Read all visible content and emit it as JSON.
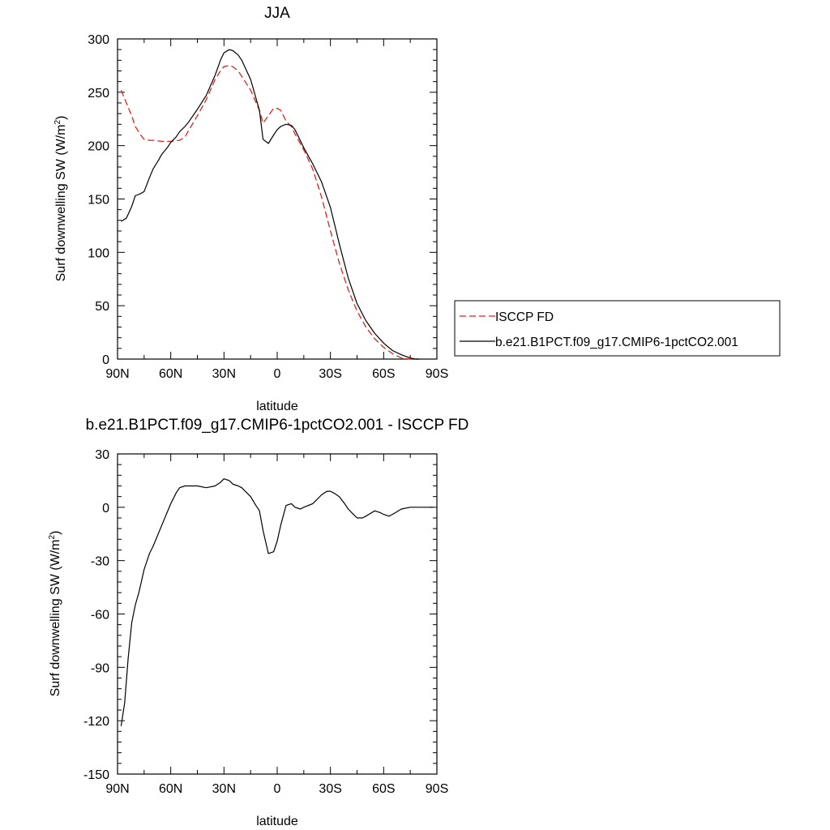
{
  "chart_data": [
    {
      "type": "line",
      "title": "JJA",
      "xlabel": "latitude",
      "ylabel": "Surf downwelling SW (W/m",
      "ylabel_sup": "2",
      "ylabel_close": ")",
      "xlim": [
        90,
        -90
      ],
      "ylim": [
        0,
        300
      ],
      "xticks": [
        {
          "value": 90,
          "label": "90N"
        },
        {
          "value": 60,
          "label": "60N"
        },
        {
          "value": 30,
          "label": "30N"
        },
        {
          "value": 0,
          "label": "0"
        },
        {
          "value": -30,
          "label": "30S"
        },
        {
          "value": -60,
          "label": "60S"
        },
        {
          "value": -90,
          "label": "90S"
        }
      ],
      "yticks": [
        0,
        50,
        100,
        150,
        200,
        250,
        300
      ],
      "grid": false,
      "legend": "right",
      "series": [
        {
          "name": "ISCCP FD",
          "color": "#e8201c",
          "dash": true,
          "x": [
            88,
            85,
            82,
            80,
            77,
            75,
            72,
            70,
            65,
            60,
            55,
            52,
            50,
            45,
            40,
            35,
            32,
            30,
            27,
            25,
            22,
            20,
            15,
            10,
            8,
            5,
            2,
            0,
            -2,
            -5,
            -8,
            -10,
            -15,
            -20,
            -25,
            -30,
            -35,
            -40,
            -45,
            -50,
            -55,
            -60,
            -65,
            -70,
            -75,
            -78,
            -80
          ],
          "y": [
            252,
            240,
            228,
            218,
            210,
            206,
            205,
            205,
            204,
            204,
            205,
            208,
            214,
            228,
            243,
            262,
            270,
            274,
            275,
            274,
            270,
            265,
            252,
            233,
            221,
            228,
            235,
            235,
            233,
            223,
            218,
            211,
            196,
            178,
            152,
            120,
            90,
            65,
            45,
            30,
            19,
            11,
            5,
            1,
            0,
            0,
            0
          ]
        },
        {
          "name": "b.e21.B1PCT.f09_g17.CMIP6-1pctCO2.001",
          "color": "#000000",
          "dash": false,
          "x": [
            88,
            85,
            82,
            80,
            77,
            75,
            72,
            70,
            67,
            65,
            62,
            60,
            57,
            55,
            52,
            50,
            45,
            40,
            35,
            32,
            30,
            27,
            25,
            22,
            20,
            15,
            10,
            8,
            5,
            2,
            0,
            -2,
            -5,
            -8,
            -10,
            -15,
            -20,
            -25,
            -30,
            -35,
            -40,
            -45,
            -50,
            -55,
            -60,
            -65,
            -70,
            -75,
            -78,
            -80
          ],
          "y": [
            129,
            132,
            143,
            153,
            155,
            157,
            170,
            178,
            186,
            192,
            198,
            203,
            208,
            213,
            218,
            222,
            234,
            247,
            266,
            280,
            287,
            290,
            289,
            285,
            280,
            262,
            233,
            206,
            202,
            210,
            215,
            218,
            220,
            219,
            215,
            198,
            183,
            166,
            142,
            108,
            76,
            52,
            36,
            24,
            15,
            8,
            4,
            1,
            0,
            0
          ]
        }
      ]
    },
    {
      "type": "line",
      "title": "b.e21.B1PCT.f09_g17.CMIP6-1pctCO2.001 - ISCCP FD",
      "xlabel": "latitude",
      "ylabel": "Surf downwelling SW (W/m",
      "ylabel_sup": "2",
      "ylabel_close": ")",
      "xlim": [
        90,
        -90
      ],
      "ylim": [
        -150,
        30
      ],
      "xticks": [
        {
          "value": 90,
          "label": "90N"
        },
        {
          "value": 60,
          "label": "60N"
        },
        {
          "value": 30,
          "label": "30N"
        },
        {
          "value": 0,
          "label": "0"
        },
        {
          "value": -30,
          "label": "30S"
        },
        {
          "value": -60,
          "label": "60S"
        },
        {
          "value": -90,
          "label": "90S"
        }
      ],
      "yticks": [
        -150,
        -120,
        -90,
        -60,
        -30,
        0,
        30
      ],
      "grid": false,
      "series": [
        {
          "color": "#000000",
          "dash": false,
          "x": [
            88,
            86,
            84,
            82,
            80,
            78,
            75,
            72,
            70,
            65,
            60,
            57,
            55,
            52,
            50,
            45,
            40,
            35,
            32,
            30,
            27,
            25,
            22,
            20,
            15,
            12,
            10,
            8,
            5,
            2,
            0,
            -2,
            -5,
            -8,
            -10,
            -13,
            -15,
            -20,
            -25,
            -28,
            -30,
            -32,
            -35,
            -38,
            -40,
            -42,
            -45,
            -48,
            -50,
            -55,
            -58,
            -60,
            -63,
            -65,
            -70,
            -75,
            -80,
            -85,
            -88
          ],
          "y": [
            -123,
            -110,
            -85,
            -65,
            -55,
            -48,
            -35,
            -26,
            -22,
            -10,
            2,
            8,
            11,
            12,
            12,
            12,
            11,
            12,
            14,
            16,
            15,
            13,
            12,
            11,
            6,
            1,
            -2,
            -13,
            -26,
            -25,
            -19,
            -10,
            1,
            2,
            0,
            -1,
            0,
            2,
            7,
            9,
            9,
            8,
            6,
            2,
            -1,
            -3,
            -6,
            -6,
            -5,
            -2,
            -3,
            -4,
            -5,
            -4,
            -1,
            0,
            0,
            0,
            0
          ]
        }
      ]
    }
  ]
}
